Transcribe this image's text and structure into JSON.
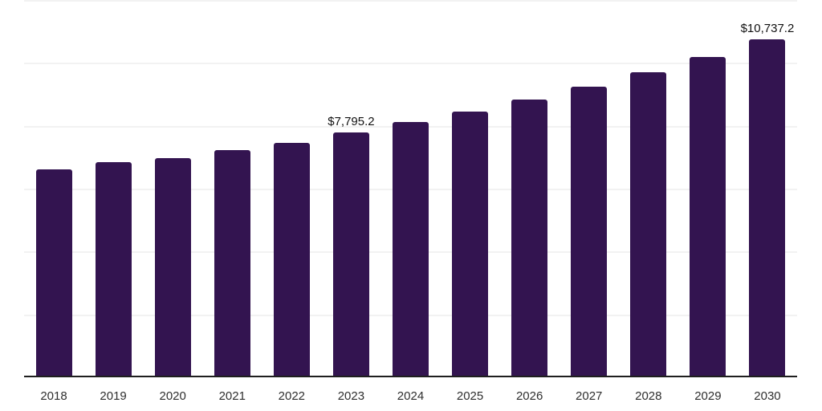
{
  "chart_data": {
    "type": "bar",
    "title": "",
    "xlabel": "",
    "ylabel": "",
    "categories": [
      "2018",
      "2019",
      "2020",
      "2021",
      "2022",
      "2023",
      "2024",
      "2025",
      "2026",
      "2027",
      "2028",
      "2029",
      "2030"
    ],
    "values": [
      6610,
      6840,
      6980,
      7230,
      7460,
      7795.2,
      8110,
      8460,
      8840,
      9250,
      9690,
      10200,
      10737.2
    ],
    "value_labels": [
      {
        "category": "2023",
        "text": "$7,795.2"
      },
      {
        "category": "2030",
        "text": "$10,737.2"
      }
    ],
    "ylim": [
      0,
      12000
    ],
    "gridline_step": 2000,
    "grid": true,
    "legend": false,
    "y_axis_tick_labels_visible": false,
    "colors": {
      "bar": "#331450",
      "gridline": "#f2f2f2",
      "axis_line": "#1f1f1f",
      "tick_label": "#2e2e2e",
      "data_label": "#111111",
      "background": "#ffffff"
    }
  }
}
